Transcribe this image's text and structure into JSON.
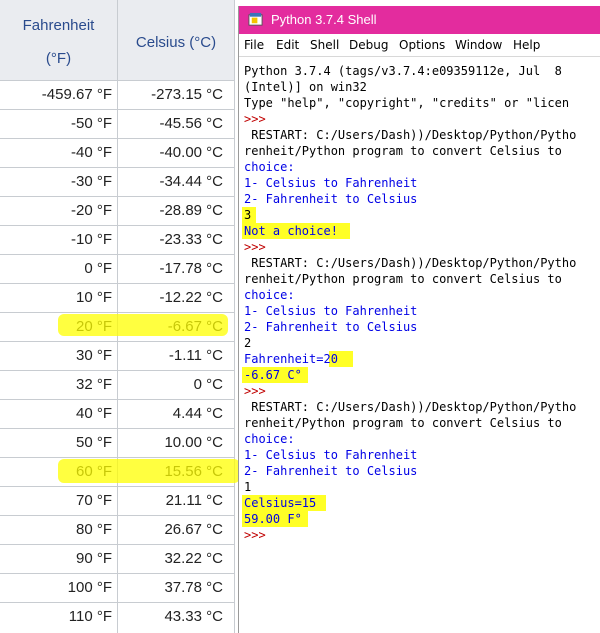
{
  "table": {
    "header_f_line1": "Fahrenheit",
    "header_f_line2": "(°F)",
    "header_c": "Celsius (°C)",
    "rows": [
      {
        "f": "-459.67 °F",
        "c": "-273.15 °C"
      },
      {
        "f": "-50 °F",
        "c": "-45.56 °C"
      },
      {
        "f": "-40 °F",
        "c": "-40.00 °C"
      },
      {
        "f": "-30 °F",
        "c": "-34.44 °C"
      },
      {
        "f": "-20 °F",
        "c": "-28.89 °C"
      },
      {
        "f": "-10 °F",
        "c": "-23.33 °C"
      },
      {
        "f": "0 °F",
        "c": "-17.78 °C"
      },
      {
        "f": "10 °F",
        "c": "-12.22 °C"
      },
      {
        "f": "20 °F",
        "c": "-6.67 °C"
      },
      {
        "f": "30 °F",
        "c": "-1.11 °C"
      },
      {
        "f": "32 °F",
        "c": "0 °C"
      },
      {
        "f": "40 °F",
        "c": "4.44 °C"
      },
      {
        "f": "50 °F",
        "c": "10.00 °C"
      },
      {
        "f": "60 °F",
        "c": "15.56 °C"
      },
      {
        "f": "70 °F",
        "c": "21.11 °C"
      },
      {
        "f": "80 °F",
        "c": "26.67 °C"
      },
      {
        "f": "90 °F",
        "c": "32.22 °C"
      },
      {
        "f": "100 °F",
        "c": "37.78 °C"
      },
      {
        "f": "110 °F",
        "c": "43.33 °C"
      }
    ]
  },
  "shell": {
    "title": "Python 3.7.4 Shell",
    "menu": [
      "File",
      "Edit",
      "Shell",
      "Debug",
      "Options",
      "Window",
      "Help"
    ],
    "lines": [
      {
        "text": "Python 3.7.4 (tags/v3.7.4:e09359112e, Jul  8",
        "color": "k"
      },
      {
        "text": "(Intel)] on win32",
        "color": "k"
      },
      {
        "text": "Type \"help\", \"copyright\", \"credits\" or \"licen",
        "color": "k"
      },
      {
        "text": ">>>",
        "color": "r"
      },
      {
        "text": " RESTART: C:/Users/Dash))/Desktop/Python/Pytho",
        "color": "k"
      },
      {
        "text": "renheit/Python program to convert Celsius to",
        "color": "k"
      },
      {
        "text": "choice:",
        "color": "b"
      },
      {
        "text": "1- Celsius to Fahrenheit",
        "color": "b"
      },
      {
        "text": "2- Fahrenheit to Celsius",
        "color": "b"
      },
      {
        "text": "3",
        "color": "k"
      },
      {
        "text": "Not a choice!",
        "color": "b"
      },
      {
        "text": ">>>",
        "color": "r"
      },
      {
        "text": " RESTART: C:/Users/Dash))/Desktop/Python/Pytho",
        "color": "k"
      },
      {
        "text": "renheit/Python program to convert Celsius to",
        "color": "k"
      },
      {
        "text": "choice:",
        "color": "b"
      },
      {
        "text": "1- Celsius to Fahrenheit",
        "color": "b"
      },
      {
        "text": "2- Fahrenheit to Celsius",
        "color": "b"
      },
      {
        "text": "2",
        "color": "k"
      },
      {
        "text": "Fahrenheit=20",
        "color": "b"
      },
      {
        "text": "-6.67 C°",
        "color": "b"
      },
      {
        "text": ">>>",
        "color": "r"
      },
      {
        "text": " RESTART: C:/Users/Dash))/Desktop/Python/Pytho",
        "color": "k"
      },
      {
        "text": "renheit/Python program to convert Celsius to",
        "color": "k"
      },
      {
        "text": "choice:",
        "color": "b"
      },
      {
        "text": "1- Celsius to Fahrenheit",
        "color": "b"
      },
      {
        "text": "2- Fahrenheit to Celsius",
        "color": "b"
      },
      {
        "text": "1",
        "color": "k"
      },
      {
        "text": "Celsius=15",
        "color": "b"
      },
      {
        "text": "59.00 F°",
        "color": "b"
      },
      {
        "text": ">>>",
        "color": "r"
      }
    ]
  },
  "colors": {
    "titlebar": "#e32c9e",
    "highlight": "#ffff00",
    "header_text": "#2a4b8d",
    "shell_output": "#0000e6",
    "shell_prompt": "#c00000"
  }
}
